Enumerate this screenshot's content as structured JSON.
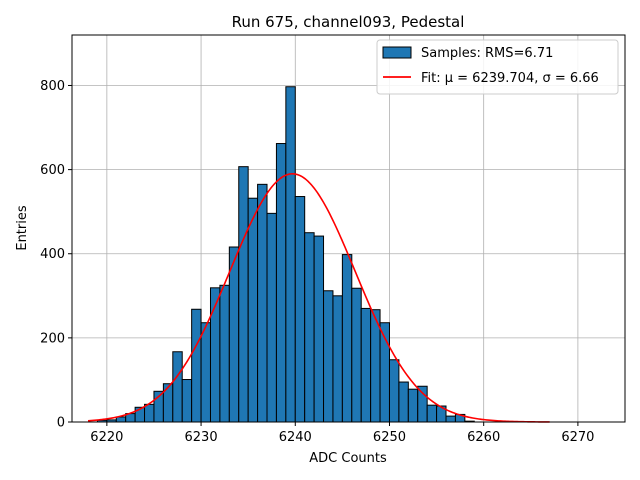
{
  "chart_data": {
    "type": "bar",
    "title": "Run 675, channel093, Pedestal",
    "xlabel": "ADC Counts",
    "ylabel": "Entries",
    "xlim": [
      6216.3,
      6275
    ],
    "ylim": [
      0,
      920
    ],
    "xticks": [
      6220,
      6230,
      6240,
      6250,
      6260,
      6270
    ],
    "yticks": [
      0,
      200,
      400,
      600,
      800
    ],
    "grid": true,
    "legend": {
      "placement": "top-right"
    },
    "bin_width": 1,
    "bins_start": [
      6219,
      6220,
      6221,
      6222,
      6223,
      6224,
      6225,
      6226,
      6227,
      6228,
      6229,
      6230,
      6231,
      6232,
      6233,
      6234,
      6235,
      6236,
      6237,
      6238,
      6239,
      6240,
      6241,
      6242,
      6243,
      6244,
      6245,
      6246,
      6247,
      6248,
      6249,
      6250,
      6251,
      6252,
      6253,
      6254,
      6255,
      6256,
      6257,
      6258
    ],
    "counts": [
      4,
      5,
      12,
      20,
      35,
      42,
      73,
      91,
      167,
      101,
      268,
      236,
      319,
      325,
      416,
      607,
      532,
      565,
      496,
      662,
      797,
      536,
      450,
      442,
      312,
      300,
      398,
      318,
      270,
      267,
      236,
      148,
      95,
      78,
      85,
      40,
      38,
      14,
      18,
      2
    ],
    "series": [
      {
        "name": "Samples: RMS=6.71",
        "type": "histogram",
        "color": "#1f77b4",
        "edgecolor": "#000000"
      },
      {
        "name": "Fit: μ = 6239.704, σ = 6.66",
        "type": "line",
        "color": "#ff0000",
        "fit": {
          "mu": 6239.704,
          "sigma": 6.66,
          "amplitude": 590,
          "x_range": [
            6218,
            6267
          ]
        }
      }
    ]
  }
}
